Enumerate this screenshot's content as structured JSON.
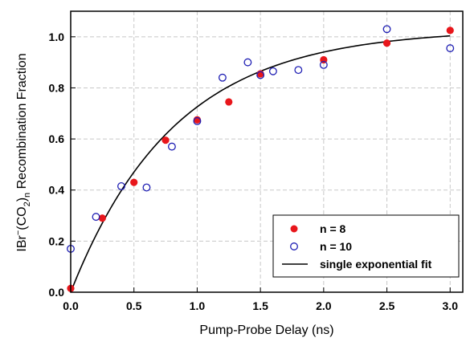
{
  "chart_data": {
    "type": "scatter",
    "xlabel": "Pump-Probe Delay (ns)",
    "ylabel": {
      "prefix": "IBr",
      "sup": "−",
      "mid": "(CO",
      "sub1": "2",
      "paren": ")",
      "sub2": "n",
      "suffix": " Recombination Fraction"
    },
    "xlim": [
      0,
      3.1
    ],
    "ylim": [
      0,
      1.1
    ],
    "xticks": [
      "0.0",
      "0.5",
      "1.0",
      "1.5",
      "2.0",
      "2.5",
      "3.0"
    ],
    "xtick_values": [
      0,
      0.5,
      1.0,
      1.5,
      2.0,
      2.5,
      3.0
    ],
    "yticks": [
      "0.0",
      "0.2",
      "0.4",
      "0.6",
      "0.8",
      "1.0"
    ],
    "ytick_values": [
      0,
      0.2,
      0.4,
      0.6,
      0.8,
      1.0
    ],
    "grid": true,
    "legend_position": "lower-right",
    "series": [
      {
        "name": "n = 8",
        "marker": "filled-circle",
        "color": "#e8161b",
        "points": [
          [
            0.0,
            0.015
          ],
          [
            0.25,
            0.29
          ],
          [
            0.5,
            0.43
          ],
          [
            0.75,
            0.595
          ],
          [
            1.0,
            0.675
          ],
          [
            1.25,
            0.745
          ],
          [
            1.5,
            0.855
          ],
          [
            2.0,
            0.91
          ],
          [
            2.5,
            0.975
          ],
          [
            3.0,
            1.025
          ]
        ]
      },
      {
        "name": "n = 10",
        "marker": "open-circle",
        "color": "#1f1fb4",
        "points": [
          [
            0.0,
            0.17
          ],
          [
            0.2,
            0.295
          ],
          [
            0.4,
            0.415
          ],
          [
            0.6,
            0.41
          ],
          [
            0.8,
            0.57
          ],
          [
            1.0,
            0.67
          ],
          [
            1.2,
            0.84
          ],
          [
            1.4,
            0.9
          ],
          [
            1.5,
            0.85
          ],
          [
            1.6,
            0.865
          ],
          [
            1.8,
            0.87
          ],
          [
            2.0,
            0.89
          ],
          [
            2.5,
            1.03
          ],
          [
            3.0,
            0.955
          ]
        ]
      },
      {
        "name": "single exponential fit",
        "marker": "line",
        "color": "#000000",
        "fit": {
          "amplitude": 1.03,
          "tau": 0.82
        }
      }
    ]
  }
}
